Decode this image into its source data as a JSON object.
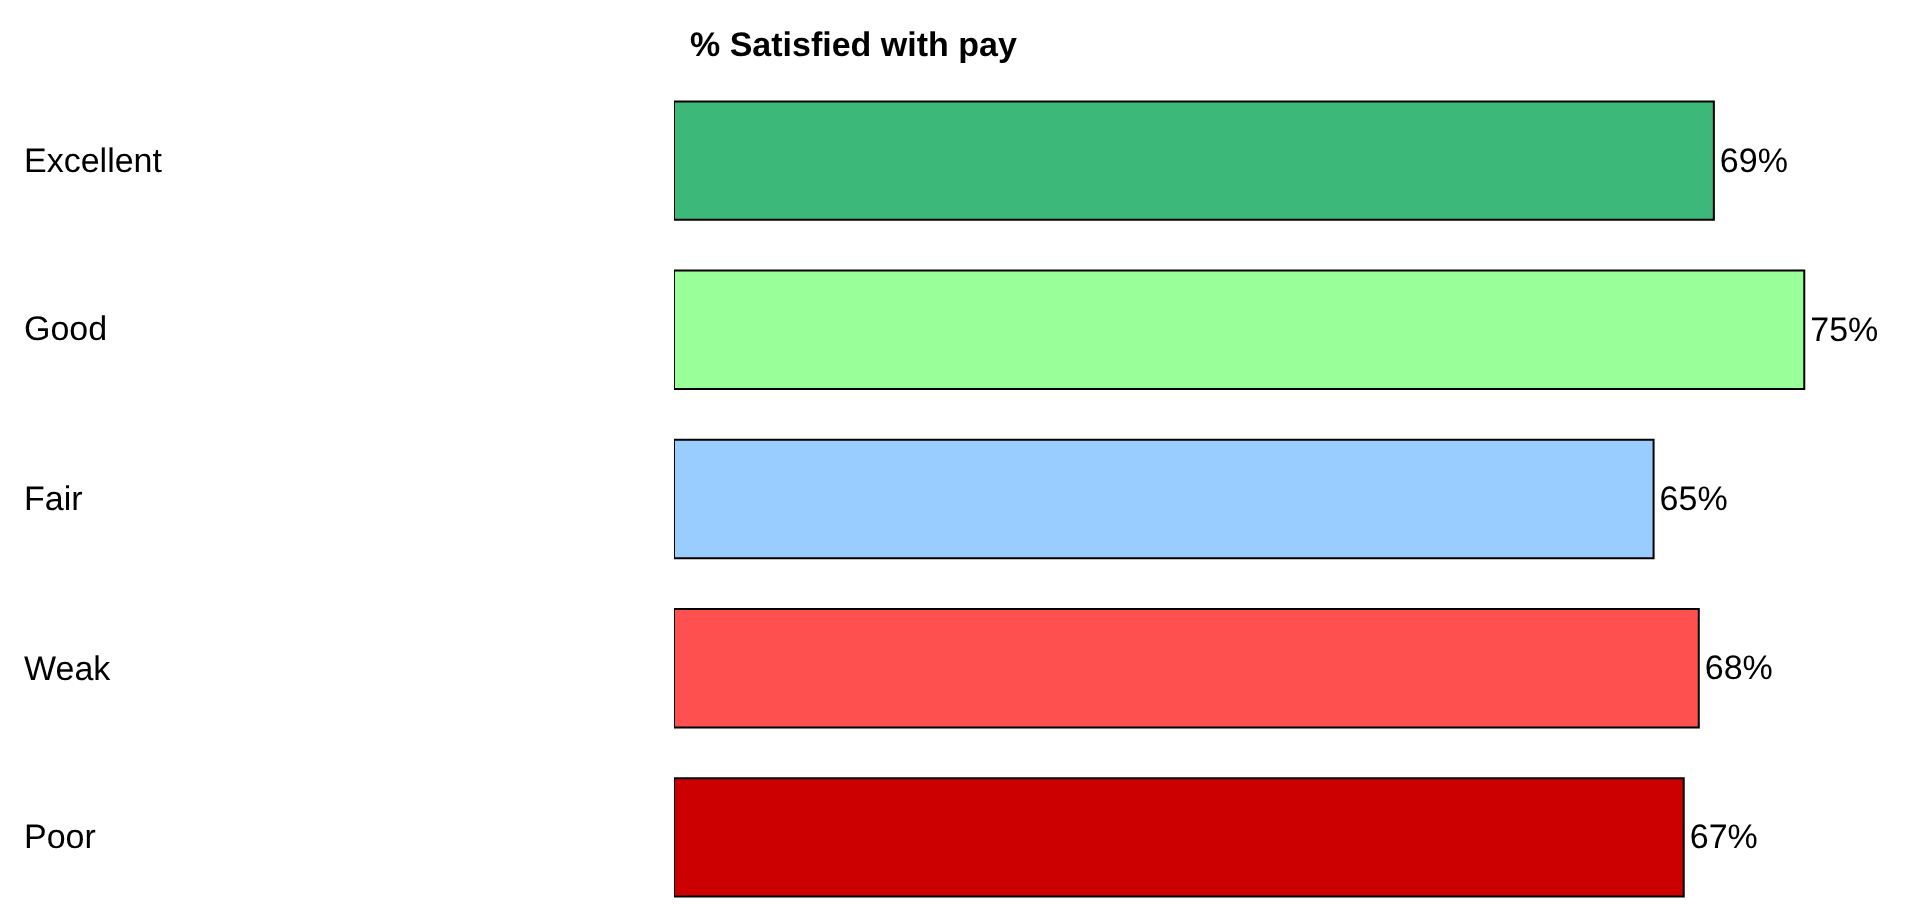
{
  "chart_data": {
    "type": "bar",
    "orientation": "horizontal",
    "title": "% Satisfied with pay",
    "categories": [
      "Excellent",
      "Good",
      "Fair",
      "Weak",
      "Poor"
    ],
    "values": [
      69,
      75,
      65,
      68,
      67
    ],
    "colors": [
      "#3cb878",
      "#99ff99",
      "#99ccff",
      "#ff5050",
      "#cc0000"
    ],
    "value_labels": [
      "69%",
      "75%",
      "65%",
      "68%",
      "67%"
    ]
  }
}
